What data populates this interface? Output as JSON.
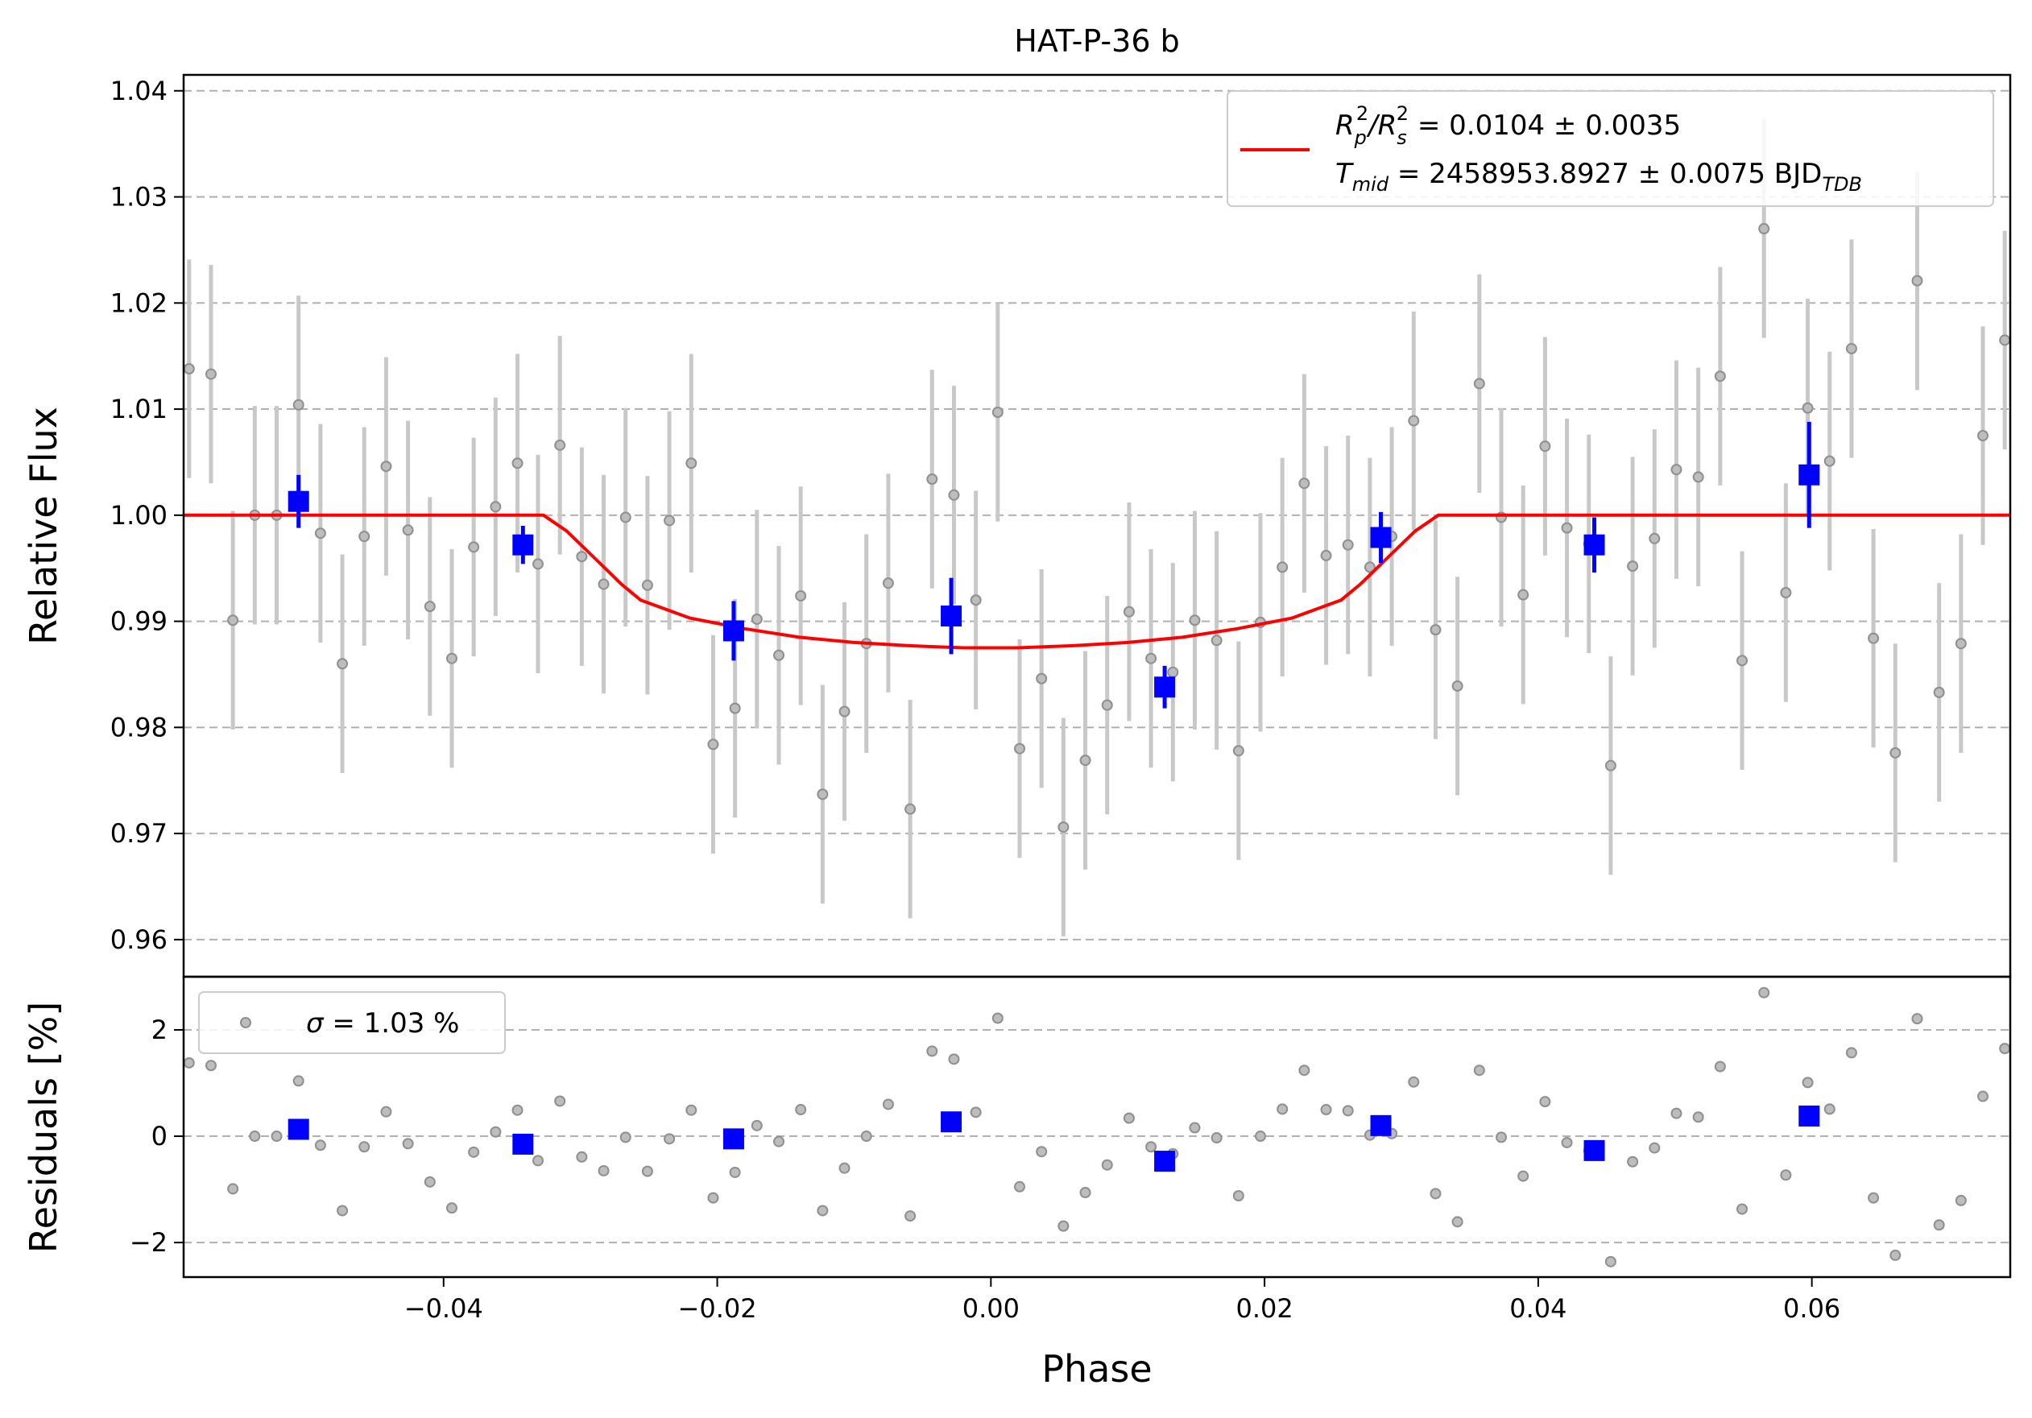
{
  "chart_data": {
    "type": "scatter",
    "title": "HAT-P-36 b",
    "xlabel": "Phase",
    "xlim": [
      -0.059,
      0.0745
    ],
    "xticks": [
      "−0.04",
      "−0.02",
      "0.00",
      "0.02",
      "0.04",
      "0.06"
    ],
    "xtick_values": [
      -0.04,
      -0.02,
      0.0,
      0.02,
      0.04,
      0.06
    ],
    "top_panel": {
      "ylabel": "Relative Flux",
      "ylim": [
        0.9565,
        1.0415
      ],
      "yticks": [
        "0.96",
        "0.97",
        "0.98",
        "0.99",
        "1.00",
        "1.01",
        "1.02",
        "1.03",
        "1.04"
      ],
      "ytick_values": [
        0.96,
        0.97,
        0.98,
        0.99,
        1.0,
        1.01,
        1.02,
        1.03,
        1.04
      ],
      "grid": "y-dashed",
      "legend": {
        "placement": "upper-right",
        "line1": {
          "prefix": "R",
          "sub1": "p",
          "sup1": "2",
          "mid": "/R",
          "sub2": "s",
          "sup2": "2",
          "suffix": " = 0.0104 ± 0.0035"
        },
        "line2": {
          "prefix": "T",
          "sub1": "mid",
          "suffix": " = 2458953.8927 ± 0.0075 BJD",
          "sub2": "TDB"
        }
      },
      "model": {
        "color": "#ff0000",
        "phase": [
          -0.059,
          -0.0327,
          -0.031,
          -0.029,
          -0.027,
          -0.0256,
          -0.022,
          -0.018,
          -0.014,
          -0.01,
          -0.006,
          -0.002,
          0.0,
          0.002,
          0.006,
          0.01,
          0.014,
          0.018,
          0.022,
          0.0256,
          0.027,
          0.029,
          0.031,
          0.0327,
          0.0745
        ],
        "flux": [
          1.0,
          1.0,
          0.9985,
          0.996,
          0.9935,
          0.992,
          0.9903,
          0.9893,
          0.9885,
          0.988,
          0.9877,
          0.9875,
          0.9875,
          0.9875,
          0.9877,
          0.988,
          0.9885,
          0.9893,
          0.9903,
          0.992,
          0.9935,
          0.996,
          0.9985,
          1.0,
          1.0
        ]
      },
      "raw": {
        "color": "#808080",
        "error": 0.0103,
        "phase": [
          -0.0586,
          -0.057,
          -0.0554,
          -0.0538,
          -0.0522,
          -0.0506,
          -0.049,
          -0.0474,
          -0.0458,
          -0.0442,
          -0.0426,
          -0.041,
          -0.0394,
          -0.0378,
          -0.0362,
          -0.0346,
          -0.0331,
          -0.0315,
          -0.0299,
          -0.0283,
          -0.0267,
          -0.0251,
          -0.0235,
          -0.0219,
          -0.0203,
          -0.0187,
          -0.0171,
          -0.0155,
          -0.0139,
          -0.0123,
          -0.0107,
          -0.0091,
          -0.0075,
          -0.0059,
          -0.0043,
          -0.0027,
          -0.0011,
          0.0005,
          0.0021,
          0.0037,
          0.0053,
          0.0069,
          0.0085,
          0.0101,
          0.0117,
          0.0133,
          0.0149,
          0.0165,
          0.0181,
          0.0197,
          0.0213,
          0.0229,
          0.0245,
          0.0261,
          0.0277,
          0.0293,
          0.0309,
          0.0325,
          0.0341,
          0.0357,
          0.0373,
          0.0389,
          0.0405,
          0.0421,
          0.0437,
          0.0453,
          0.0469,
          0.0485,
          0.0501,
          0.0517,
          0.0533,
          0.0549,
          0.0565,
          0.0581,
          0.0597,
          0.0613,
          0.0629,
          0.0645,
          0.0661,
          0.0677,
          0.0693,
          0.0709,
          0.0725,
          0.0741
        ],
        "flux": [
          1.0138,
          1.0133,
          0.9901,
          1.0,
          1.0,
          1.0104,
          0.9983,
          0.986,
          0.998,
          1.0046,
          0.9986,
          0.9914,
          0.9865,
          0.997,
          1.0008,
          1.0049,
          0.9954,
          1.0066,
          0.9961,
          0.9935,
          0.9998,
          0.9934,
          0.9995,
          1.0049,
          0.9784,
          0.9818,
          0.9902,
          0.9868,
          0.9924,
          0.9737,
          0.9815,
          0.9879,
          0.9936,
          0.9723,
          1.0034,
          1.0019,
          0.992,
          1.0097,
          0.978,
          0.9846,
          0.9706,
          0.9769,
          0.9821,
          0.9909,
          0.9865,
          0.9852,
          0.9901,
          0.9882,
          0.9778,
          0.9899,
          0.9951,
          1.003,
          0.9962,
          0.9972,
          0.9951,
          0.998,
          1.0089,
          0.9892,
          0.9839,
          1.0124,
          0.9998,
          0.9925,
          1.0065,
          0.9988,
          0.9973,
          0.9764,
          0.9952,
          0.9978,
          1.0043,
          1.0036,
          1.0131,
          0.9863,
          1.027,
          0.9927,
          1.0101,
          1.0051,
          1.0157,
          0.9884,
          0.9776,
          1.0221,
          0.9833,
          0.9879,
          1.0075,
          1.0165
        ]
      },
      "binned": {
        "color": "#0000ff",
        "phase": [
          -0.0506,
          -0.0342,
          -0.0188,
          -0.0029,
          0.0127,
          0.0285,
          0.0441,
          0.0598
        ],
        "flux": [
          1.0013,
          0.9972,
          0.9891,
          0.9905,
          0.9838,
          0.9979,
          0.9972,
          1.0038
        ],
        "error": [
          0.0025,
          0.0018,
          0.0028,
          0.0036,
          0.002,
          0.0024,
          0.0026,
          0.005
        ]
      }
    },
    "bottom_panel": {
      "ylabel": "Residuals [%]",
      "ylim": [
        -2.65,
        3.0
      ],
      "yticks": [
        "−2",
        "0",
        "2"
      ],
      "ytick_values": [
        -2,
        0,
        2
      ],
      "grid": "y-dashed",
      "legend": {
        "placement": "upper-left",
        "prefix": "σ",
        "suffix": " = 1.03 %"
      },
      "raw_residuals": [
        1.38,
        1.33,
        -0.99,
        0.0,
        0.0,
        1.04,
        -0.17,
        -1.4,
        -0.2,
        0.46,
        -0.14,
        -0.86,
        -1.35,
        -0.3,
        0.08,
        0.49,
        -0.46,
        0.66,
        -0.39,
        -0.65,
        -0.02,
        -0.66,
        -0.05,
        0.49,
        -1.16,
        -0.68,
        0.2,
        -0.1,
        0.5,
        -1.4,
        -0.6,
        0.0,
        0.6,
        -1.5,
        1.6,
        1.45,
        0.45,
        2.22,
        -0.95,
        -0.29,
        -1.69,
        -1.06,
        -0.54,
        0.34,
        -0.2,
        -0.33,
        0.16,
        -0.03,
        -1.12,
        0.0,
        0.51,
        1.24,
        0.5,
        0.48,
        0.02,
        0.05,
        1.02,
        -1.08,
        -1.61,
        1.24,
        -0.02,
        -0.75,
        0.65,
        -0.12,
        -0.27,
        -2.36,
        -0.48,
        -0.22,
        0.43,
        0.36,
        1.31,
        -1.37,
        2.7,
        -0.73,
        1.01,
        0.51,
        1.57,
        -1.16,
        -2.24,
        2.21,
        -1.67,
        -1.21,
        0.75,
        1.65
      ],
      "binned_residuals": [
        0.13,
        -0.15,
        -0.05,
        0.27,
        -0.47,
        0.2,
        -0.27,
        0.38
      ]
    }
  }
}
